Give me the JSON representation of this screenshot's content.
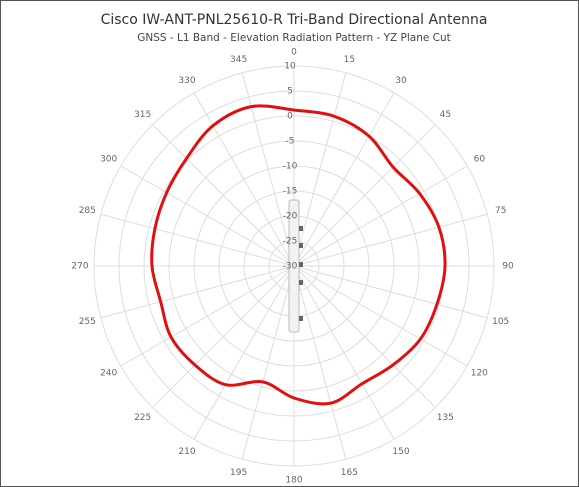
{
  "chart_data": {
    "type": "polar",
    "title": "Cisco IW-ANT-PNL25610-R Tri-Band Directional Antenna",
    "subtitle": "GNSS - L1 Band - Elevation Radiation Pattern - YZ Plane Cut",
    "x": [
      0,
      15,
      30,
      45,
      60,
      75,
      90,
      105,
      120,
      135,
      150,
      165,
      180,
      195,
      210,
      225,
      240,
      255,
      270,
      285,
      300,
      315,
      330,
      345
    ],
    "values": [
      1.2,
      1,
      0,
      -2,
      -1,
      0,
      0.2,
      -0.4,
      -0.8,
      -2,
      -2.8,
      -1.6,
      -3.6,
      -6,
      -2.6,
      -2,
      -1.6,
      -2.4,
      -1.6,
      -1.2,
      -0.6,
      0.4,
      2.4,
      3
    ],
    "color": "#e01010",
    "ylim": [
      -30,
      10
    ],
    "yticks": [
      10,
      5,
      0,
      -5,
      -10,
      -15,
      -20,
      -25,
      -30
    ],
    "grid": true
  }
}
